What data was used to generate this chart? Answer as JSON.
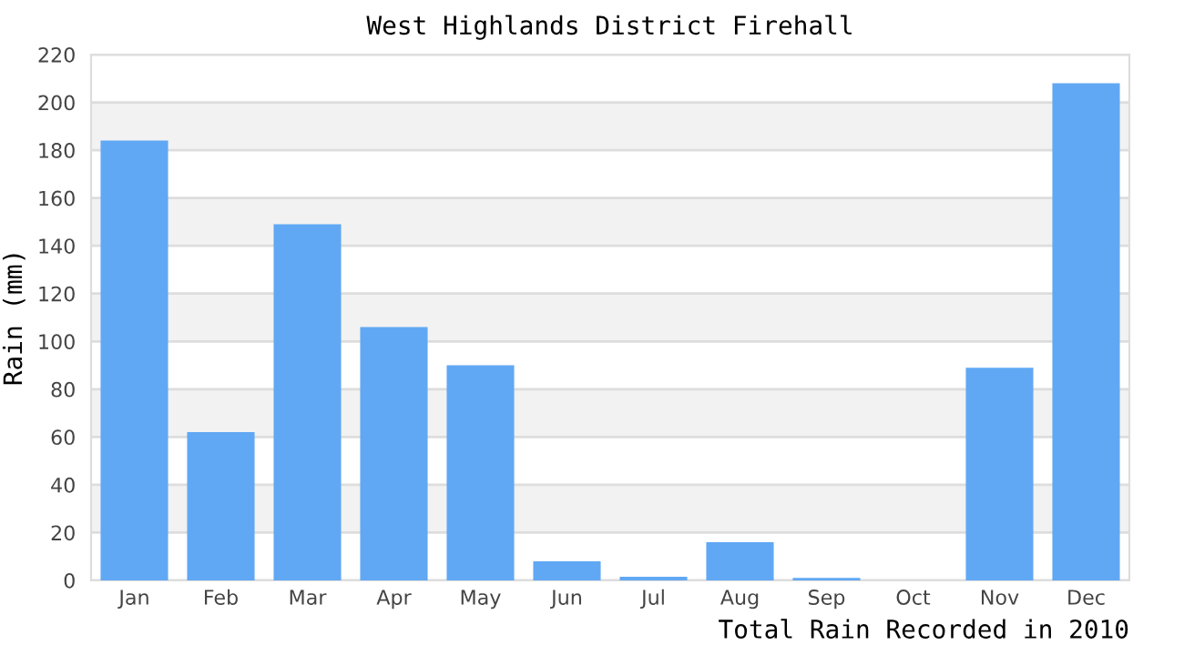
{
  "chart_data": {
    "type": "bar",
    "title": "West Highlands District Firehall",
    "xlabel": "Total Rain Recorded in 2010",
    "ylabel": "Rain (mm)",
    "categories": [
      "Jan",
      "Feb",
      "Mar",
      "Apr",
      "May",
      "Jun",
      "Jul",
      "Aug",
      "Sep",
      "Oct",
      "Nov",
      "Dec"
    ],
    "values": [
      184,
      62,
      149,
      106,
      90,
      8,
      1.5,
      16,
      1,
      0,
      89,
      208
    ],
    "color": "#60a8f4",
    "ylim": [
      0,
      220
    ],
    "yticks": [
      0,
      20,
      40,
      60,
      80,
      100,
      120,
      140,
      160,
      180,
      200,
      220
    ],
    "grid": "y"
  }
}
